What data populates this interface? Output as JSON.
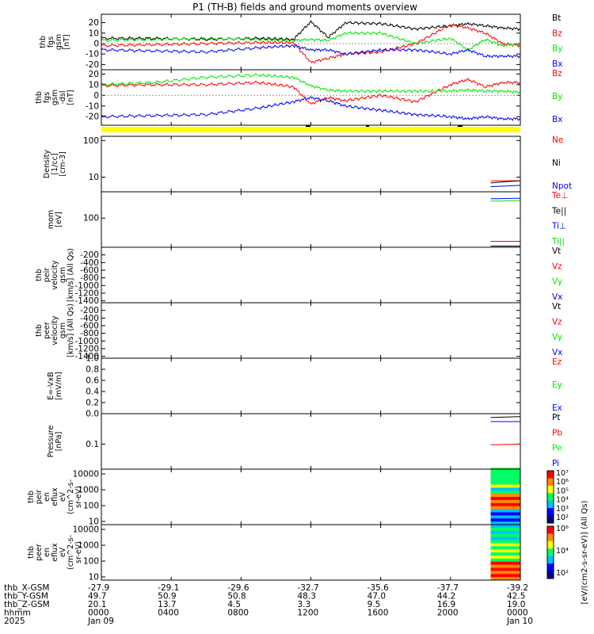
{
  "title": "P1 (TH-B) fields and ground moments overview",
  "colors": {
    "black": "#000000",
    "red": "#ff0000",
    "green": "#00e600",
    "blue": "#0000ff",
    "yellow": "#ffff00"
  },
  "chart_data": [
    {
      "type": "line",
      "ylabel": [
        "thb",
        "fgs",
        "gsm",
        "[nT]"
      ],
      "yticks": [
        "-20",
        "-10",
        "0",
        "10",
        "20"
      ],
      "ylim": [
        -25,
        28
      ],
      "legend": [
        {
          "label": "Bt",
          "color": "black"
        },
        {
          "label": "Bz",
          "color": "red"
        },
        {
          "label": "By",
          "color": "green"
        },
        {
          "label": "Bx",
          "color": "blue"
        }
      ],
      "series": [
        {
          "name": "Bt",
          "color": "black",
          "x": [
            0,
            3,
            6,
            9,
            11,
            12,
            13,
            14,
            16,
            18,
            20,
            21,
            22,
            23,
            24
          ],
          "values": [
            5,
            5,
            4,
            5,
            4,
            21,
            6,
            20,
            19,
            14,
            17,
            19,
            17,
            15,
            14
          ]
        },
        {
          "name": "Bz",
          "color": "red",
          "x": [
            0,
            3,
            6,
            9,
            11,
            12,
            13,
            14,
            16,
            18,
            20,
            21,
            22,
            23,
            24
          ],
          "values": [
            -2,
            -1,
            0,
            1,
            1,
            -18,
            -14,
            -10,
            -8,
            0,
            18,
            15,
            10,
            0,
            -2
          ]
        },
        {
          "name": "By",
          "color": "green",
          "x": [
            0,
            3,
            6,
            9,
            11,
            12,
            13,
            14,
            16,
            18,
            20,
            21,
            22,
            23,
            24
          ],
          "values": [
            3,
            4,
            5,
            4,
            3,
            4,
            3,
            10,
            10,
            0,
            5,
            -6,
            4,
            -2,
            0
          ]
        },
        {
          "name": "Bx",
          "color": "blue",
          "x": [
            0,
            3,
            6,
            9,
            11,
            12,
            13,
            14,
            16,
            18,
            20,
            21,
            22,
            23,
            24
          ],
          "values": [
            -6,
            -7,
            -8,
            -4,
            -2,
            -6,
            -6,
            -10,
            -6,
            -6,
            -10,
            -6,
            -12,
            -12,
            -12
          ]
        }
      ]
    },
    {
      "type": "line",
      "ylabel": [
        "thb",
        "fgs",
        "gsm",
        "-dsl",
        "[nT]"
      ],
      "yticks": [
        "-20",
        "-10",
        "0",
        "10",
        "20"
      ],
      "ylim": [
        -28,
        24
      ],
      "legend": [
        {
          "label": "Bz",
          "color": "red"
        },
        {
          "label": "By",
          "color": "green"
        },
        {
          "label": "Bx",
          "color": "blue"
        }
      ],
      "series": [
        {
          "name": "Bz",
          "color": "red",
          "x": [
            0,
            3,
            6,
            9,
            11,
            12,
            13,
            14,
            16,
            18,
            20,
            21,
            22,
            23,
            24
          ],
          "values": [
            9,
            10,
            10,
            12,
            8,
            -8,
            -2,
            -5,
            0,
            -6,
            10,
            15,
            8,
            12,
            12
          ]
        },
        {
          "name": "By",
          "color": "green",
          "x": [
            0,
            3,
            6,
            9,
            11,
            12,
            13,
            14,
            16,
            18,
            20,
            21,
            22,
            23,
            24
          ],
          "values": [
            10,
            12,
            17,
            19,
            17,
            9,
            5,
            4,
            4,
            4,
            4,
            5,
            4,
            4,
            3
          ]
        },
        {
          "name": "Bx",
          "color": "blue",
          "x": [
            0,
            3,
            6,
            9,
            11,
            12,
            13,
            14,
            16,
            18,
            20,
            21,
            22,
            23,
            24
          ],
          "values": [
            -20,
            -19,
            -18,
            -12,
            -6,
            -2,
            -5,
            -10,
            -14,
            -18,
            -20,
            -22,
            -20,
            -22,
            -22
          ]
        }
      ]
    },
    {
      "type": "line",
      "log": true,
      "ylabel": [
        "Density",
        "[1/cc]",
        "[cm-3]"
      ],
      "yticks": [
        "10",
        "100"
      ],
      "ylim": [
        4,
        130
      ],
      "legend": [
        {
          "label": "Ne",
          "color": "red"
        },
        {
          "label": "Ni",
          "color": "black"
        },
        {
          "label": "Npot",
          "color": "blue"
        }
      ],
      "series": [
        {
          "name": "Ne",
          "color": "red",
          "x": [
            22.3,
            24
          ],
          "values": [
            8,
            8
          ]
        },
        {
          "name": "Ni",
          "color": "black",
          "x": [
            22.3,
            24
          ],
          "values": [
            7,
            8
          ]
        },
        {
          "name": "Npot",
          "color": "blue",
          "x": [
            22.3,
            24
          ],
          "values": [
            5.5,
            6
          ]
        }
      ]
    },
    {
      "type": "line",
      "log": true,
      "ylabel": [
        "mom",
        "[eV]"
      ],
      "yticks": [
        "100"
      ],
      "ylim": [
        10,
        800
      ],
      "legend": [
        {
          "label": "Te⊥",
          "color": "red"
        },
        {
          "label": "Te||",
          "color": "black"
        },
        {
          "label": "Ti⊥",
          "color": "blue"
        },
        {
          "label": "Ti||",
          "color": "green"
        }
      ],
      "series": [
        {
          "name": "Te⊥",
          "color": "red",
          "x": [
            22.3,
            24
          ],
          "values": [
            16,
            16
          ]
        },
        {
          "name": "Te||",
          "color": "black",
          "x": [
            22.3,
            24
          ],
          "values": [
            11,
            11
          ]
        },
        {
          "name": "Ti⊥",
          "color": "blue",
          "x": [
            22.3,
            24
          ],
          "values": [
            460,
            480
          ]
        },
        {
          "name": "Ti||",
          "color": "green",
          "x": [
            22.3,
            24
          ],
          "values": [
            380,
            400
          ]
        }
      ]
    },
    {
      "type": "line",
      "ylabel": [
        "thb",
        "peir",
        "velocity",
        "gsm",
        "[km/s] (All Qs)"
      ],
      "yticks": [
        "-200",
        "-400",
        "-600",
        "-800",
        "-1000",
        "-1200",
        "-1400"
      ],
      "ylim": [
        -1450,
        0
      ],
      "legend": [
        {
          "label": "Vt",
          "color": "black"
        },
        {
          "label": "Vz",
          "color": "red"
        },
        {
          "label": "Vy",
          "color": "green"
        },
        {
          "label": "Vx",
          "color": "blue"
        }
      ],
      "series": []
    },
    {
      "type": "line",
      "ylabel": [
        "thb",
        "peer",
        "velocity",
        "gsm",
        "[km/s] (All Qs)"
      ],
      "yticks": [
        "-200",
        "-400",
        "-600",
        "-800",
        "-1000",
        "-1200",
        "-1400"
      ],
      "ylim": [
        -1450,
        0
      ],
      "legend": [
        {
          "label": "Vt",
          "color": "black"
        },
        {
          "label": "Vz",
          "color": "red"
        },
        {
          "label": "Vy",
          "color": "green"
        },
        {
          "label": "Vx",
          "color": "blue"
        }
      ],
      "series": []
    },
    {
      "type": "line",
      "ylabel": [
        "E=-VxB",
        "[mV/m]"
      ],
      "yticks": [
        "0.0",
        "0.2",
        "0.4",
        "0.6",
        "0.8",
        "1.0"
      ],
      "ylim": [
        0,
        1.0
      ],
      "legend": [
        {
          "label": "Ez",
          "color": "red"
        },
        {
          "label": "Ey",
          "color": "green"
        },
        {
          "label": "Ex",
          "color": "blue"
        }
      ],
      "series": []
    },
    {
      "type": "line",
      "log": true,
      "ylabel": [
        "Pressure",
        "[nPa]"
      ],
      "yticks": [
        "0.1"
      ],
      "ylim": [
        0.015,
        1.0
      ],
      "legend": [
        {
          "label": "Pt",
          "color": "black"
        },
        {
          "label": "Pb",
          "color": "red"
        },
        {
          "label": "Pe",
          "color": "green"
        },
        {
          "label": "Pi",
          "color": "blue"
        }
      ],
      "series": [
        {
          "name": "Pt",
          "color": "black",
          "x": [
            22.3,
            24
          ],
          "values": [
            0.75,
            0.8
          ]
        },
        {
          "name": "Pb",
          "color": "red",
          "x": [
            22.3,
            24
          ],
          "values": [
            0.095,
            0.1
          ]
        },
        {
          "name": "Pe",
          "color": "green",
          "x": [
            22.3,
            24
          ],
          "values": [
            0.016,
            0.016
          ]
        },
        {
          "name": "Pi",
          "color": "blue",
          "x": [
            22.3,
            24
          ],
          "values": [
            0.55,
            0.55
          ]
        }
      ]
    },
    {
      "type": "heatmap",
      "ylabel": [
        "thb",
        "peir",
        "en",
        "eflux",
        "eV",
        "(cm^2-s-",
        "sr-eV)"
      ],
      "yticks": [
        "10",
        "100",
        "1000",
        "10000"
      ],
      "colorbar": {
        "ticks": [
          "10²",
          "10³",
          "10⁴",
          "10⁵",
          "10⁶",
          "10⁷"
        ]
      },
      "x_start": 22.3,
      "x_end": 24
    },
    {
      "type": "heatmap",
      "ylabel": [
        "thb",
        "peer",
        "en",
        "eflux",
        "eV",
        "(cm^2-s-",
        "sr-eV)"
      ],
      "yticks": [
        "10",
        "100",
        "1000",
        "10000"
      ],
      "colorbar": {
        "ticks": [
          "10²",
          "10⁴",
          "10⁶"
        ]
      },
      "x_start": 22.3,
      "x_end": 24
    }
  ],
  "flag_bar": {
    "color": "yellow"
  },
  "colorbar_label": "[eV/(cm2-s-sr-eV)] (All Qs)",
  "x_axis": {
    "xlim": [
      0,
      24
    ],
    "tick_positions": [
      0,
      4,
      8,
      12,
      16,
      20,
      24
    ],
    "rows": [
      {
        "label": "thb_X-GSM",
        "values": [
          "-27.9",
          "-29.1",
          "-29.6",
          "-32.7",
          "-35.6",
          "-37.7",
          "-39.2"
        ]
      },
      {
        "label": "thb_Y-GSM",
        "values": [
          "49.7",
          "50.9",
          "50.8",
          "48.3",
          "47.0",
          "44.2",
          "42.5"
        ]
      },
      {
        "label": "thb_Z-GSM",
        "values": [
          "20.1",
          "13.7",
          "4.5",
          "3.3",
          "9.5",
          "16.9",
          "19.0"
        ]
      },
      {
        "label": "hhmm",
        "values": [
          "0000",
          "0400",
          "0800",
          "1200",
          "1600",
          "2000",
          "0000"
        ]
      },
      {
        "label": "2025",
        "values": [
          "Jan 09",
          "",
          "",
          "",
          "",
          "",
          "Jan 10"
        ]
      }
    ]
  }
}
